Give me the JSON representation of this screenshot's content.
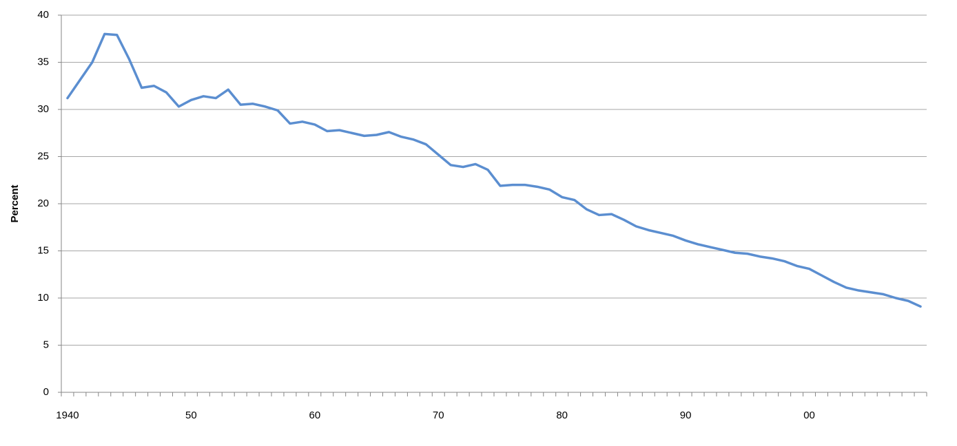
{
  "chart_data": {
    "type": "line",
    "ylabel": "Percent",
    "categories": [
      "1940",
      null,
      null,
      null,
      null,
      null,
      null,
      null,
      null,
      null,
      "50",
      null,
      null,
      null,
      null,
      null,
      null,
      null,
      null,
      null,
      "60",
      null,
      null,
      null,
      null,
      null,
      null,
      null,
      null,
      null,
      "70",
      null,
      null,
      null,
      null,
      null,
      null,
      null,
      null,
      null,
      "80",
      null,
      null,
      null,
      null,
      null,
      null,
      null,
      null,
      null,
      "90",
      null,
      null,
      null,
      null,
      null,
      null,
      null,
      null,
      null,
      "00",
      null,
      null,
      null,
      null,
      null,
      null,
      null,
      null,
      null
    ],
    "series": [
      {
        "color": "#5b8ed0",
        "values": [
          31.2,
          33.1,
          35.0,
          38.0,
          37.9,
          35.3,
          32.3,
          32.5,
          31.8,
          30.3,
          31.0,
          31.4,
          31.2,
          32.1,
          30.5,
          30.6,
          30.3,
          29.9,
          28.5,
          28.7,
          28.4,
          27.7,
          27.8,
          27.5,
          27.2,
          27.3,
          27.6,
          27.1,
          26.8,
          26.3,
          25.2,
          24.1,
          23.9,
          24.2,
          23.6,
          21.9,
          22.0,
          22.0,
          21.8,
          21.5,
          20.7,
          20.4,
          19.4,
          18.8,
          18.9,
          18.3,
          17.6,
          17.2,
          16.9,
          16.6,
          16.1,
          15.7,
          15.4,
          15.1,
          14.8,
          14.7,
          14.4,
          14.2,
          13.9,
          13.4,
          13.1,
          12.4,
          11.7,
          11.1,
          10.8,
          10.6,
          10.4,
          10.0,
          9.7,
          9.1
        ]
      }
    ],
    "ylim": [
      0,
      40
    ],
    "yticks": [
      0,
      5,
      10,
      15,
      20,
      25,
      30,
      35,
      40
    ],
    "grid": true
  }
}
